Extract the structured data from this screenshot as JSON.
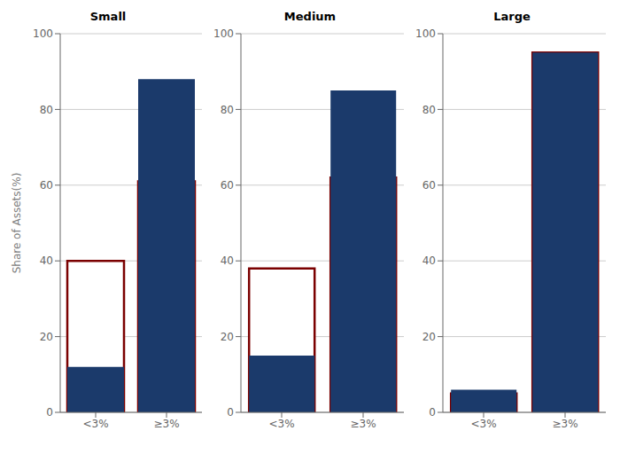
{
  "chart_data": [
    {
      "type": "bar",
      "title": "Small",
      "ylabel": "Share of Assets(%)",
      "categories": [
        "<3%",
        "≥3%"
      ],
      "series": [
        {
          "color": "#7B0000",
          "values": [
            40,
            61
          ]
        },
        {
          "color": "#1B3A6B",
          "values": [
            12,
            88
          ]
        }
      ],
      "ylim": [
        0,
        100
      ],
      "yticks": [
        0,
        20,
        40,
        60,
        80,
        100
      ],
      "grid": true
    },
    {
      "type": "bar",
      "title": "Medium",
      "categories": [
        "<3%",
        "≥3%"
      ],
      "series": [
        {
          "color": "#7B0000",
          "values": [
            38,
            62
          ]
        },
        {
          "color": "#1B3A6B",
          "values": [
            15,
            85
          ]
        }
      ],
      "ylim": [
        0,
        100
      ],
      "yticks": [
        0,
        20,
        40,
        60,
        80,
        100
      ],
      "grid": true
    },
    {
      "type": "bar",
      "title": "Large",
      "categories": [
        "<3%",
        "≥3%"
      ],
      "series": [
        {
          "color": "#7B0000",
          "values": [
            5,
            95
          ]
        },
        {
          "color": "#1B3A6B",
          "values": [
            6,
            95
          ]
        }
      ],
      "ylim": [
        0,
        100
      ],
      "yticks": [
        0,
        20,
        40,
        60,
        80,
        100
      ],
      "grid": true
    }
  ]
}
